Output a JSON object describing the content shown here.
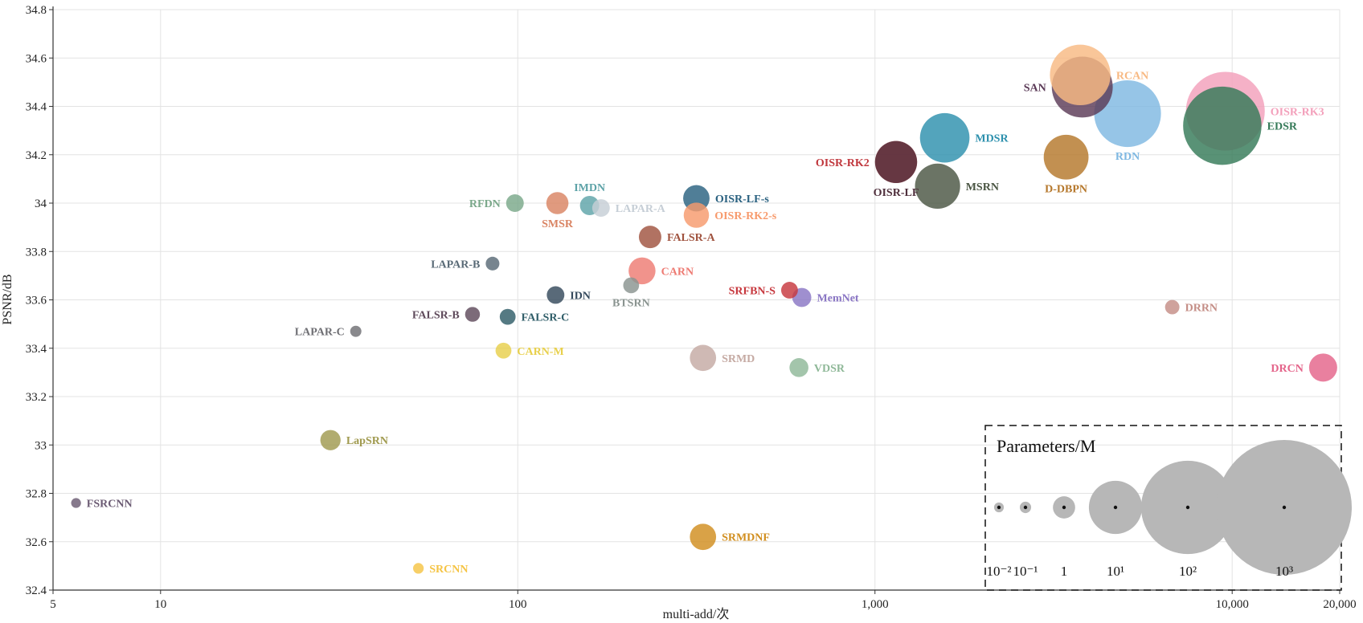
{
  "chart_data": {
    "type": "scatter",
    "title": "",
    "xlabel": "multi-add/次",
    "ylabel": "PSNR/dB",
    "xscale": "log",
    "xlim": [
      5,
      20000
    ],
    "ylim": [
      32.4,
      34.8
    ],
    "grid": true,
    "x_ticks": [
      {
        "value": 5,
        "label": "5"
      },
      {
        "value": 10,
        "label": "10"
      },
      {
        "value": 100,
        "label": "100"
      },
      {
        "value": 1000,
        "label": "1,000"
      },
      {
        "value": 10000,
        "label": "10,000"
      },
      {
        "value": 20000,
        "label": "20,000"
      }
    ],
    "y_ticks": [
      {
        "value": 32.4,
        "label": "32.4"
      },
      {
        "value": 32.6,
        "label": "32.6"
      },
      {
        "value": 32.8,
        "label": "32.8"
      },
      {
        "value": 33,
        "label": "33"
      },
      {
        "value": 33.2,
        "label": "33.2"
      },
      {
        "value": 33.4,
        "label": "33.4"
      },
      {
        "value": 33.6,
        "label": "33.6"
      },
      {
        "value": 33.8,
        "label": "33.8"
      },
      {
        "value": 34,
        "label": "34"
      },
      {
        "value": 34.2,
        "label": "34.2"
      },
      {
        "value": 34.4,
        "label": "34.4"
      },
      {
        "value": 34.6,
        "label": "34.6"
      },
      {
        "value": 34.8,
        "label": "34.8"
      }
    ],
    "points": [
      {
        "name": "FSRCNN",
        "x": 5.8,
        "y": 32.76,
        "params": 0.012,
        "color": "#6b5b73",
        "label_side": "right"
      },
      {
        "name": "SRCNN",
        "x": 52.7,
        "y": 32.49,
        "params": 0.057,
        "color": "#f5c445",
        "label_side": "right"
      },
      {
        "name": "LapSRN",
        "x": 29.9,
        "y": 33.02,
        "params": 0.8,
        "color": "#a09a4f",
        "label_side": "right"
      },
      {
        "name": "LAPAR-C",
        "x": 35.2,
        "y": 33.47,
        "params": 0.09,
        "color": "#6f6f74",
        "label_side": "left"
      },
      {
        "name": "FALSR-B",
        "x": 74.7,
        "y": 33.54,
        "params": 0.33,
        "color": "#5f4a5b",
        "label_side": "left"
      },
      {
        "name": "FALSR-C",
        "x": 93.7,
        "y": 33.53,
        "params": 0.41,
        "color": "#2f5d68",
        "label_side": "right"
      },
      {
        "name": "CARN-M",
        "x": 91.2,
        "y": 33.39,
        "params": 0.41,
        "color": "#e8d04c",
        "label_side": "right"
      },
      {
        "name": "LAPAR-B",
        "x": 85,
        "y": 33.75,
        "params": 0.25,
        "color": "#596a76",
        "label_side": "left"
      },
      {
        "name": "RFDN",
        "x": 98.2,
        "y": 34.0,
        "params": 0.55,
        "color": "#7aa88a",
        "label_side": "left"
      },
      {
        "name": "SMSR",
        "x": 129.1,
        "y": 34.0,
        "params": 0.99,
        "color": "#d98463",
        "label_side": "below"
      },
      {
        "name": "IMDN",
        "x": 158.9,
        "y": 33.99,
        "params": 0.7,
        "color": "#5ea3a8",
        "label_side": "above"
      },
      {
        "name": "LAPAR-A",
        "x": 171,
        "y": 33.98,
        "params": 0.55,
        "color": "#c6ced6",
        "label_side": "right"
      },
      {
        "name": "IDN",
        "x": 127.6,
        "y": 33.62,
        "params": 0.55,
        "color": "#34495c",
        "label_side": "right"
      },
      {
        "name": "BTSRN",
        "x": 207.7,
        "y": 33.66,
        "params": 0.41,
        "color": "#8a9490",
        "label_side": "below"
      },
      {
        "name": "FALSR-A",
        "x": 234.7,
        "y": 33.86,
        "params": 1.03,
        "color": "#a0533f",
        "label_side": "right"
      },
      {
        "name": "CARN",
        "x": 222.8,
        "y": 33.72,
        "params": 1.59,
        "color": "#ee7b73",
        "label_side": "right"
      },
      {
        "name": "OISR-LF-s",
        "x": 316.2,
        "y": 34.02,
        "params": 1.52,
        "color": "#2a6180",
        "label_side": "right"
      },
      {
        "name": "OISR-RK2-s",
        "x": 316.2,
        "y": 33.95,
        "params": 1.37,
        "color": "#f79a6c",
        "label_side": "right"
      },
      {
        "name": "SRMD",
        "x": 330,
        "y": 33.36,
        "params": 1.5,
        "color": "#c5aaa3",
        "label_side": "right"
      },
      {
        "name": "SRMDNF",
        "x": 330,
        "y": 32.62,
        "params": 1.5,
        "color": "#d18e1e",
        "label_side": "right"
      },
      {
        "name": "SRFBN-S",
        "x": 576.5,
        "y": 33.64,
        "params": 0.48,
        "color": "#c7383e",
        "label_side": "left"
      },
      {
        "name": "MemNet",
        "x": 623.9,
        "y": 33.61,
        "params": 0.68,
        "color": "#8a76c4",
        "label_side": "right"
      },
      {
        "name": "VDSR",
        "x": 612.6,
        "y": 33.32,
        "params": 0.67,
        "color": "#8fb898",
        "label_side": "right"
      },
      {
        "name": "OISR-RK2",
        "x": 1145.7,
        "y": 34.17,
        "params": 4.97,
        "color": "#c0373d",
        "label_side": "left"
      },
      {
        "name": "OISR-LF",
        "x": 1145.7,
        "y": 34.17,
        "params": 4.97,
        "color": "#4f2f3c",
        "label_side": "below"
      },
      {
        "name": "MSRN",
        "x": 1497,
        "y": 34.07,
        "params": 6.08,
        "color": "#4a5543",
        "label_side": "right"
      },
      {
        "name": "MDSR",
        "x": 1568,
        "y": 34.27,
        "params": 8.0,
        "color": "#2d90ad",
        "label_side": "right"
      },
      {
        "name": "D-DBPN",
        "x": 3429,
        "y": 34.19,
        "params": 5.95,
        "color": "#b5772b",
        "label_side": "below"
      },
      {
        "name": "RCAN",
        "x": 3755,
        "y": 34.53,
        "params": 15.6,
        "color": "#f8b982",
        "label_side": "right"
      },
      {
        "name": "SAN",
        "x": 3805,
        "y": 34.48,
        "params": 15.9,
        "color": "#5b3a57",
        "label_side": "left"
      },
      {
        "name": "RDN",
        "x": 5096,
        "y": 34.37,
        "params": 22.3,
        "color": "#7fb8e2",
        "label_side": "below"
      },
      {
        "name": "OISR-RK3",
        "x": 9569,
        "y": 34.38,
        "params": 44.3,
        "color": "#f3a0bb",
        "label_side": "right"
      },
      {
        "name": "EDSR",
        "x": 9384,
        "y": 34.32,
        "params": 43.1,
        "color": "#357a58",
        "label_side": "right"
      },
      {
        "name": "DRRN",
        "x": 6796,
        "y": 33.57,
        "params": 0.3,
        "color": "#c48e86",
        "label_side": "right"
      },
      {
        "name": "DRCN",
        "x": 17974,
        "y": 33.32,
        "params": 1.77,
        "color": "#e4648a",
        "label_side": "left"
      }
    ],
    "legend": {
      "title": "Parameters/M",
      "placement": "bottom-right",
      "style": "dashed-box",
      "color": "#b7b7b7",
      "items": [
        {
          "params": 0.01,
          "label": "10⁻²"
        },
        {
          "params": 0.1,
          "label": "10⁻¹"
        },
        {
          "params": 1,
          "label": "1"
        },
        {
          "params": 10,
          "label": "10¹"
        },
        {
          "params": 100,
          "label": "10²"
        },
        {
          "params": 1000,
          "label": "10³"
        }
      ]
    }
  }
}
